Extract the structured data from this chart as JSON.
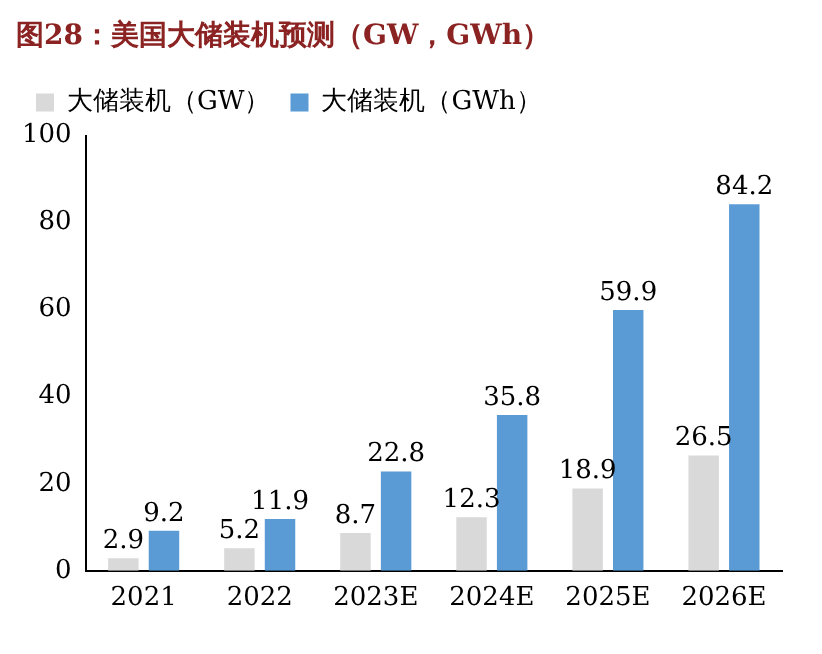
{
  "chart_data": {
    "type": "bar",
    "title": "图28：美国大储装机预测（GW，GWh）",
    "categories": [
      "2021",
      "2022",
      "2023E",
      "2024E",
      "2025E",
      "2026E"
    ],
    "series": [
      {
        "name": "大储装机（GW）",
        "color": "#d9d9d9",
        "values": [
          2.9,
          5.2,
          8.7,
          12.3,
          18.9,
          26.5
        ]
      },
      {
        "name": "大储装机（GWh）",
        "color": "#5b9bd5",
        "values": [
          9.2,
          11.9,
          22.8,
          35.8,
          59.9,
          84.2
        ]
      }
    ],
    "ylim": [
      0,
      100
    ],
    "yticks": [
      0,
      20,
      40,
      60,
      80,
      100
    ],
    "grid": false,
    "legend": "top left",
    "data_labels": true
  }
}
